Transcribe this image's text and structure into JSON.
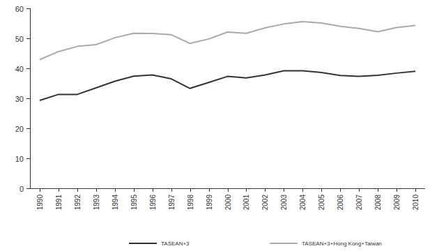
{
  "chart_data": {
    "type": "line",
    "categories": [
      "1990",
      "1991",
      "1992",
      "1993",
      "1994",
      "1995",
      "1996",
      "1997",
      "1998",
      "1999",
      "2000",
      "2001",
      "2002",
      "2003",
      "2004",
      "2005",
      "2006",
      "2007",
      "2008",
      "2009",
      "2010"
    ],
    "series": [
      {
        "name": "TASEAN+3",
        "color": "#333333",
        "values": [
          29.3,
          31.3,
          31.3,
          33.5,
          35.7,
          37.4,
          37.8,
          36.5,
          33.3,
          35.3,
          37.3,
          36.8,
          37.8,
          39.2,
          39.2,
          38.6,
          37.6,
          37.3,
          37.7,
          38.4,
          39.0
        ]
      },
      {
        "name": "TASEAN+3+Hong Kong+Taiwan",
        "color": "#aaaaaa",
        "values": [
          42.9,
          45.6,
          47.3,
          47.9,
          50.2,
          51.7,
          51.6,
          51.2,
          48.3,
          49.8,
          52.1,
          51.7,
          53.5,
          54.8,
          55.6,
          55.1,
          54.0,
          53.3,
          52.2,
          53.6,
          54.3
        ]
      }
    ],
    "ylim": [
      0,
      60
    ],
    "yticks": [
      0,
      10,
      20,
      30,
      40,
      50,
      60
    ],
    "grid": false,
    "legend": "bottom"
  }
}
